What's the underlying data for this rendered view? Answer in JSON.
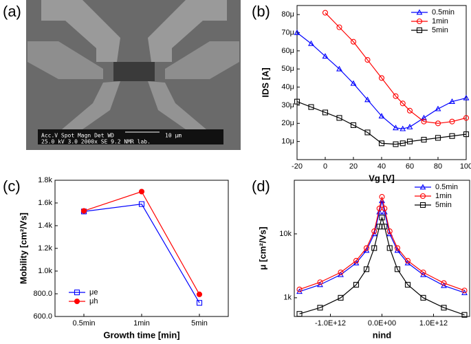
{
  "chart_data": [
    {
      "type": "image",
      "panel_label": "(a)",
      "annotations": [
        "Acc.V  Spot Magn   Det  WD",
        "25.0 kV 3.0   2000x   SE  9.2   NMR lab.",
        "10 μm"
      ]
    },
    {
      "type": "line",
      "panel_label": "(b)",
      "x_label": "Vg [V]",
      "y_label": "IDS [A]",
      "x": [
        -20,
        -10,
        0,
        10,
        20,
        30,
        40,
        50,
        55,
        60,
        70,
        80,
        90,
        100
      ],
      "xlim": [
        -20,
        100
      ],
      "xticks": [
        -20,
        0,
        20,
        40,
        60,
        80,
        100
      ],
      "ylim": [
        0,
        85
      ],
      "yticks": [
        {
          "value": 10,
          "label": "10μ"
        },
        {
          "value": 20,
          "label": "20μ"
        },
        {
          "value": 30,
          "label": "30μ"
        },
        {
          "value": 40,
          "label": "40μ"
        },
        {
          "value": 50,
          "label": "50μ"
        },
        {
          "value": 60,
          "label": "60μ"
        },
        {
          "value": 70,
          "label": "70μ"
        },
        {
          "value": 80,
          "label": "80μ"
        }
      ],
      "legend": "upper right",
      "series": [
        {
          "name": "0.5min",
          "color": "#0000ff",
          "marker": "triangle",
          "filled": false,
          "values": [
            70,
            64,
            57,
            50,
            42,
            33,
            24,
            17.5,
            17,
            18,
            23,
            28,
            32,
            34
          ]
        },
        {
          "name": "1min",
          "color": "#ff0000",
          "marker": "circle",
          "filled": false,
          "values": [
            null,
            null,
            81,
            73,
            65,
            55,
            45,
            35,
            31,
            27,
            21,
            20,
            21,
            23
          ]
        },
        {
          "name": "5min",
          "color": "#000000",
          "marker": "square",
          "filled": false,
          "values": [
            32,
            29,
            26,
            23,
            19,
            15,
            9,
            8.5,
            9,
            10,
            11,
            12,
            13,
            14
          ]
        }
      ]
    },
    {
      "type": "line",
      "panel_label": "(c)",
      "x_label": "Growth time [min]",
      "y_label": "Mobility [cm²/Vs]",
      "categories": [
        "0.5min",
        "1min",
        "5min"
      ],
      "ylim": [
        600,
        1800
      ],
      "yticks": [
        {
          "value": 600,
          "label": "600.0"
        },
        {
          "value": 800,
          "label": "800.0"
        },
        {
          "value": 1000,
          "label": "1.0k"
        },
        {
          "value": 1200,
          "label": "1.2k"
        },
        {
          "value": 1400,
          "label": "1.4k"
        },
        {
          "value": 1600,
          "label": "1.6k"
        },
        {
          "value": 1800,
          "label": "1.8k"
        }
      ],
      "legend": "lower left",
      "series": [
        {
          "name": "μe",
          "color": "#0000ff",
          "marker": "square",
          "filled": false,
          "values": [
            1525,
            1590,
            720
          ]
        },
        {
          "name": "μh",
          "color": "#ff0000",
          "marker": "circle",
          "filled": true,
          "values": [
            1530,
            1700,
            795
          ]
        }
      ]
    },
    {
      "type": "line",
      "panel_label": "(d)",
      "x_label": "nind",
      "y_label": "μ [cm²/Vs]",
      "x": [
        -1600000000000.0,
        -1200000000000.0,
        -800000000000.0,
        -500000000000.0,
        -300000000000.0,
        -150000000000.0,
        -50000000000.0,
        0,
        50000000000.0,
        150000000000.0,
        300000000000.0,
        500000000000.0,
        800000000000.0,
        1200000000000.0,
        1600000000000.0
      ],
      "xlim": [
        -1700000000000.0,
        1700000000000.0
      ],
      "xticks": [
        {
          "value": -1000000000000.0,
          "label": "-1.0E+12"
        },
        {
          "value": 0,
          "label": "0.0E+00"
        },
        {
          "value": 1000000000000.0,
          "label": "1.0E+12"
        }
      ],
      "yscale": "log",
      "ylim": [
        510,
        69000
      ],
      "yticks": [
        {
          "value": 1000,
          "label": "1k"
        },
        {
          "value": 10000,
          "label": "10k"
        }
      ],
      "legend": "upper right",
      "series": [
        {
          "name": "0.5min",
          "color": "#0000ff",
          "marker": "triangle",
          "filled": false,
          "values": [
            1250,
            1600,
            2300,
            3500,
            5500,
            10000,
            22000,
            33000,
            22000,
            10000,
            5500,
            3500,
            2300,
            1550,
            1200
          ]
        },
        {
          "name": "1min",
          "color": "#ff0000",
          "marker": "circle",
          "filled": false,
          "values": [
            1350,
            1750,
            2500,
            3800,
            6000,
            11000,
            25000,
            38000,
            25000,
            11000,
            6000,
            3800,
            2500,
            1700,
            1300
          ]
        },
        {
          "name": "5min",
          "color": "#000000",
          "marker": "square",
          "filled": false,
          "values": [
            560,
            700,
            1000,
            1600,
            2800,
            6000,
            13000,
            18000,
            13000,
            6000,
            2800,
            1600,
            1000,
            700,
            540
          ]
        }
      ]
    }
  ]
}
